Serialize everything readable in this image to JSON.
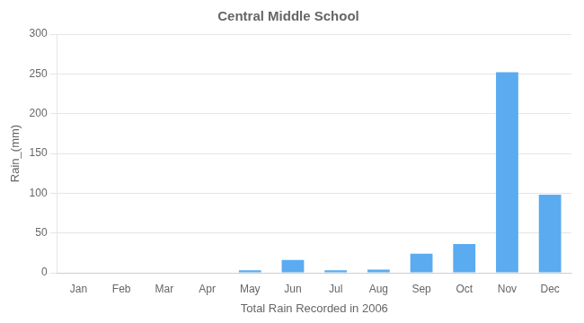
{
  "chart_data": {
    "type": "bar",
    "title": "Central Middle School",
    "xlabel": "Total Rain Recorded in 2006",
    "ylabel": "Rain_(mm)",
    "categories": [
      "Jan",
      "Feb",
      "Mar",
      "Apr",
      "May",
      "Jun",
      "Jul",
      "Aug",
      "Sep",
      "Oct",
      "Nov",
      "Dec"
    ],
    "values": [
      0,
      0,
      0,
      0,
      3,
      16,
      3,
      4,
      24,
      36,
      252,
      98
    ],
    "color": "#5aabf0",
    "ylim": [
      0,
      300
    ],
    "yticks": [
      0,
      50,
      100,
      150,
      200,
      250,
      300
    ],
    "grid": true
  }
}
